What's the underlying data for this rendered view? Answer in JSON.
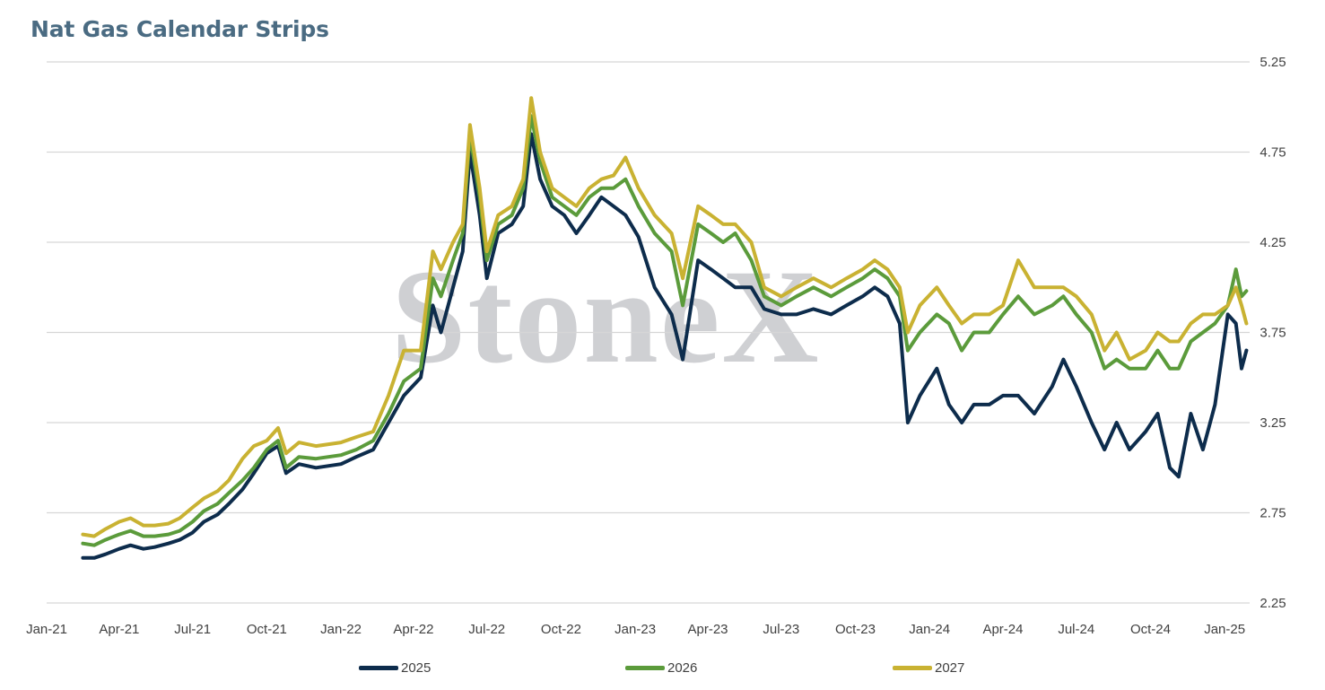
{
  "chart_data": {
    "type": "line",
    "title": "Nat Gas Calendar Strips",
    "xlabel": "",
    "ylabel": "",
    "x_range": [
      "2021-01-01",
      "2025-02-01"
    ],
    "ylim": [
      2.25,
      5.25
    ],
    "y_ticks": [
      "2.25",
      "2.75",
      "3.25",
      "3.75",
      "4.25",
      "4.75",
      "5.25"
    ],
    "y_axis_position": "right",
    "x_tick_labels": [
      "Jan-21",
      "Apr-21",
      "Jul-21",
      "Oct-21",
      "Jan-22",
      "Apr-22",
      "Jul-22",
      "Oct-22",
      "Jan-23",
      "Apr-23",
      "Jul-23",
      "Oct-23",
      "Jan-24",
      "Apr-24",
      "Jul-24",
      "Oct-24",
      "Jan-25"
    ],
    "grid": "horizontal",
    "legend_position": "bottom",
    "watermark": "StoneX",
    "series": [
      {
        "name": "2025",
        "color": "#0d2c4c",
        "points": [
          [
            "2021-02-15",
            2.5
          ],
          [
            "2021-03-01",
            2.5
          ],
          [
            "2021-03-15",
            2.52
          ],
          [
            "2021-04-01",
            2.55
          ],
          [
            "2021-04-15",
            2.57
          ],
          [
            "2021-05-01",
            2.55
          ],
          [
            "2021-05-15",
            2.56
          ],
          [
            "2021-06-01",
            2.58
          ],
          [
            "2021-06-15",
            2.6
          ],
          [
            "2021-07-01",
            2.64
          ],
          [
            "2021-07-15",
            2.7
          ],
          [
            "2021-08-01",
            2.74
          ],
          [
            "2021-08-15",
            2.8
          ],
          [
            "2021-09-01",
            2.88
          ],
          [
            "2021-09-15",
            2.97
          ],
          [
            "2021-10-01",
            3.08
          ],
          [
            "2021-10-15",
            3.12
          ],
          [
            "2021-10-25",
            2.97
          ],
          [
            "2021-11-10",
            3.02
          ],
          [
            "2021-12-01",
            3.0
          ],
          [
            "2022-01-01",
            3.02
          ],
          [
            "2022-01-20",
            3.06
          ],
          [
            "2022-02-10",
            3.1
          ],
          [
            "2022-03-01",
            3.25
          ],
          [
            "2022-03-20",
            3.4
          ],
          [
            "2022-04-10",
            3.5
          ],
          [
            "2022-04-25",
            3.9
          ],
          [
            "2022-05-05",
            3.75
          ],
          [
            "2022-05-20",
            4.0
          ],
          [
            "2022-06-01",
            4.2
          ],
          [
            "2022-06-10",
            4.75
          ],
          [
            "2022-06-22",
            4.4
          ],
          [
            "2022-07-01",
            4.05
          ],
          [
            "2022-07-15",
            4.3
          ],
          [
            "2022-08-01",
            4.35
          ],
          [
            "2022-08-15",
            4.45
          ],
          [
            "2022-08-25",
            4.85
          ],
          [
            "2022-09-05",
            4.6
          ],
          [
            "2022-09-20",
            4.45
          ],
          [
            "2022-10-05",
            4.4
          ],
          [
            "2022-10-20",
            4.3
          ],
          [
            "2022-11-05",
            4.4
          ],
          [
            "2022-11-20",
            4.5
          ],
          [
            "2022-12-05",
            4.45
          ],
          [
            "2022-12-20",
            4.4
          ],
          [
            "2023-01-05",
            4.28
          ],
          [
            "2023-01-25",
            4.0
          ],
          [
            "2023-02-15",
            3.85
          ],
          [
            "2023-03-01",
            3.6
          ],
          [
            "2023-03-20",
            4.15
          ],
          [
            "2023-04-05",
            4.1
          ],
          [
            "2023-04-20",
            4.05
          ],
          [
            "2023-05-05",
            4.0
          ],
          [
            "2023-05-25",
            4.0
          ],
          [
            "2023-06-10",
            3.88
          ],
          [
            "2023-07-01",
            3.85
          ],
          [
            "2023-07-20",
            3.85
          ],
          [
            "2023-08-10",
            3.88
          ],
          [
            "2023-09-01",
            3.85
          ],
          [
            "2023-09-20",
            3.9
          ],
          [
            "2023-10-10",
            3.95
          ],
          [
            "2023-10-25",
            4.0
          ],
          [
            "2023-11-10",
            3.95
          ],
          [
            "2023-11-25",
            3.8
          ],
          [
            "2023-12-05",
            3.25
          ],
          [
            "2023-12-20",
            3.4
          ],
          [
            "2024-01-10",
            3.55
          ],
          [
            "2024-01-25",
            3.35
          ],
          [
            "2024-02-10",
            3.25
          ],
          [
            "2024-02-25",
            3.35
          ],
          [
            "2024-03-15",
            3.35
          ],
          [
            "2024-04-01",
            3.4
          ],
          [
            "2024-04-20",
            3.4
          ],
          [
            "2024-05-10",
            3.3
          ],
          [
            "2024-06-01",
            3.45
          ],
          [
            "2024-06-15",
            3.6
          ],
          [
            "2024-07-01",
            3.45
          ],
          [
            "2024-07-20",
            3.25
          ],
          [
            "2024-08-05",
            3.1
          ],
          [
            "2024-08-20",
            3.25
          ],
          [
            "2024-09-05",
            3.1
          ],
          [
            "2024-09-25",
            3.2
          ],
          [
            "2024-10-10",
            3.3
          ],
          [
            "2024-10-25",
            3.0
          ],
          [
            "2024-11-05",
            2.95
          ],
          [
            "2024-11-20",
            3.3
          ],
          [
            "2024-12-05",
            3.1
          ],
          [
            "2024-12-20",
            3.35
          ],
          [
            "2025-01-05",
            3.85
          ],
          [
            "2025-01-15",
            3.8
          ],
          [
            "2025-01-22",
            3.55
          ],
          [
            "2025-01-28",
            3.65
          ]
        ]
      },
      {
        "name": "2026",
        "color": "#5b9b3b",
        "points": [
          [
            "2021-02-15",
            2.58
          ],
          [
            "2021-03-01",
            2.57
          ],
          [
            "2021-03-15",
            2.6
          ],
          [
            "2021-04-01",
            2.63
          ],
          [
            "2021-04-15",
            2.65
          ],
          [
            "2021-05-01",
            2.62
          ],
          [
            "2021-05-15",
            2.62
          ],
          [
            "2021-06-01",
            2.63
          ],
          [
            "2021-06-15",
            2.65
          ],
          [
            "2021-07-01",
            2.7
          ],
          [
            "2021-07-15",
            2.76
          ],
          [
            "2021-08-01",
            2.8
          ],
          [
            "2021-08-15",
            2.86
          ],
          [
            "2021-09-01",
            2.93
          ],
          [
            "2021-09-15",
            3.0
          ],
          [
            "2021-10-01",
            3.1
          ],
          [
            "2021-10-15",
            3.15
          ],
          [
            "2021-10-25",
            3.0
          ],
          [
            "2021-11-10",
            3.06
          ],
          [
            "2021-12-01",
            3.05
          ],
          [
            "2022-01-01",
            3.07
          ],
          [
            "2022-01-20",
            3.1
          ],
          [
            "2022-02-10",
            3.15
          ],
          [
            "2022-03-01",
            3.3
          ],
          [
            "2022-03-20",
            3.48
          ],
          [
            "2022-04-10",
            3.55
          ],
          [
            "2022-04-25",
            4.05
          ],
          [
            "2022-05-05",
            3.95
          ],
          [
            "2022-05-20",
            4.15
          ],
          [
            "2022-06-01",
            4.3
          ],
          [
            "2022-06-10",
            4.85
          ],
          [
            "2022-06-22",
            4.5
          ],
          [
            "2022-07-01",
            4.15
          ],
          [
            "2022-07-15",
            4.35
          ],
          [
            "2022-08-01",
            4.4
          ],
          [
            "2022-08-15",
            4.55
          ],
          [
            "2022-08-25",
            4.95
          ],
          [
            "2022-09-05",
            4.7
          ],
          [
            "2022-09-20",
            4.5
          ],
          [
            "2022-10-05",
            4.45
          ],
          [
            "2022-10-20",
            4.4
          ],
          [
            "2022-11-05",
            4.5
          ],
          [
            "2022-11-20",
            4.55
          ],
          [
            "2022-12-05",
            4.55
          ],
          [
            "2022-12-20",
            4.6
          ],
          [
            "2023-01-05",
            4.45
          ],
          [
            "2023-01-25",
            4.3
          ],
          [
            "2023-02-15",
            4.2
          ],
          [
            "2023-03-01",
            3.9
          ],
          [
            "2023-03-20",
            4.35
          ],
          [
            "2023-04-05",
            4.3
          ],
          [
            "2023-04-20",
            4.25
          ],
          [
            "2023-05-05",
            4.3
          ],
          [
            "2023-05-25",
            4.15
          ],
          [
            "2023-06-10",
            3.95
          ],
          [
            "2023-07-01",
            3.9
          ],
          [
            "2023-07-20",
            3.95
          ],
          [
            "2023-08-10",
            4.0
          ],
          [
            "2023-09-01",
            3.95
          ],
          [
            "2023-09-20",
            4.0
          ],
          [
            "2023-10-10",
            4.05
          ],
          [
            "2023-10-25",
            4.1
          ],
          [
            "2023-11-10",
            4.05
          ],
          [
            "2023-11-25",
            3.95
          ],
          [
            "2023-12-05",
            3.65
          ],
          [
            "2023-12-20",
            3.75
          ],
          [
            "2024-01-10",
            3.85
          ],
          [
            "2024-01-25",
            3.8
          ],
          [
            "2024-02-10",
            3.65
          ],
          [
            "2024-02-25",
            3.75
          ],
          [
            "2024-03-15",
            3.75
          ],
          [
            "2024-04-01",
            3.85
          ],
          [
            "2024-04-20",
            3.95
          ],
          [
            "2024-05-10",
            3.85
          ],
          [
            "2024-06-01",
            3.9
          ],
          [
            "2024-06-15",
            3.95
          ],
          [
            "2024-07-01",
            3.85
          ],
          [
            "2024-07-20",
            3.75
          ],
          [
            "2024-08-05",
            3.55
          ],
          [
            "2024-08-20",
            3.6
          ],
          [
            "2024-09-05",
            3.55
          ],
          [
            "2024-09-25",
            3.55
          ],
          [
            "2024-10-10",
            3.65
          ],
          [
            "2024-10-25",
            3.55
          ],
          [
            "2024-11-05",
            3.55
          ],
          [
            "2024-11-20",
            3.7
          ],
          [
            "2024-12-05",
            3.75
          ],
          [
            "2024-12-20",
            3.8
          ],
          [
            "2025-01-05",
            3.9
          ],
          [
            "2025-01-15",
            4.1
          ],
          [
            "2025-01-22",
            3.95
          ],
          [
            "2025-01-28",
            3.98
          ]
        ]
      },
      {
        "name": "2027",
        "color": "#c9b232",
        "points": [
          [
            "2021-02-15",
            2.63
          ],
          [
            "2021-03-01",
            2.62
          ],
          [
            "2021-03-15",
            2.66
          ],
          [
            "2021-04-01",
            2.7
          ],
          [
            "2021-04-15",
            2.72
          ],
          [
            "2021-05-01",
            2.68
          ],
          [
            "2021-05-15",
            2.68
          ],
          [
            "2021-06-01",
            2.69
          ],
          [
            "2021-06-15",
            2.72
          ],
          [
            "2021-07-01",
            2.78
          ],
          [
            "2021-07-15",
            2.83
          ],
          [
            "2021-08-01",
            2.87
          ],
          [
            "2021-08-15",
            2.93
          ],
          [
            "2021-09-01",
            3.05
          ],
          [
            "2021-09-15",
            3.12
          ],
          [
            "2021-10-01",
            3.15
          ],
          [
            "2021-10-15",
            3.22
          ],
          [
            "2021-10-25",
            3.08
          ],
          [
            "2021-11-10",
            3.14
          ],
          [
            "2021-12-01",
            3.12
          ],
          [
            "2022-01-01",
            3.14
          ],
          [
            "2022-01-20",
            3.17
          ],
          [
            "2022-02-10",
            3.2
          ],
          [
            "2022-03-01",
            3.4
          ],
          [
            "2022-03-20",
            3.65
          ],
          [
            "2022-04-10",
            3.65
          ],
          [
            "2022-04-25",
            4.2
          ],
          [
            "2022-05-05",
            4.1
          ],
          [
            "2022-05-20",
            4.25
          ],
          [
            "2022-06-01",
            4.35
          ],
          [
            "2022-06-10",
            4.9
          ],
          [
            "2022-06-22",
            4.55
          ],
          [
            "2022-07-01",
            4.2
          ],
          [
            "2022-07-15",
            4.4
          ],
          [
            "2022-08-01",
            4.45
          ],
          [
            "2022-08-15",
            4.6
          ],
          [
            "2022-08-25",
            5.05
          ],
          [
            "2022-09-05",
            4.75
          ],
          [
            "2022-09-20",
            4.55
          ],
          [
            "2022-10-05",
            4.5
          ],
          [
            "2022-10-20",
            4.45
          ],
          [
            "2022-11-05",
            4.55
          ],
          [
            "2022-11-20",
            4.6
          ],
          [
            "2022-12-05",
            4.62
          ],
          [
            "2022-12-20",
            4.72
          ],
          [
            "2023-01-05",
            4.55
          ],
          [
            "2023-01-25",
            4.4
          ],
          [
            "2023-02-15",
            4.3
          ],
          [
            "2023-03-01",
            4.05
          ],
          [
            "2023-03-20",
            4.45
          ],
          [
            "2023-04-05",
            4.4
          ],
          [
            "2023-04-20",
            4.35
          ],
          [
            "2023-05-05",
            4.35
          ],
          [
            "2023-05-25",
            4.25
          ],
          [
            "2023-06-10",
            4.0
          ],
          [
            "2023-07-01",
            3.95
          ],
          [
            "2023-07-20",
            4.0
          ],
          [
            "2023-08-10",
            4.05
          ],
          [
            "2023-09-01",
            4.0
          ],
          [
            "2023-09-20",
            4.05
          ],
          [
            "2023-10-10",
            4.1
          ],
          [
            "2023-10-25",
            4.15
          ],
          [
            "2023-11-10",
            4.1
          ],
          [
            "2023-11-25",
            4.0
          ],
          [
            "2023-12-05",
            3.75
          ],
          [
            "2023-12-20",
            3.9
          ],
          [
            "2024-01-10",
            4.0
          ],
          [
            "2024-01-25",
            3.9
          ],
          [
            "2024-02-10",
            3.8
          ],
          [
            "2024-02-25",
            3.85
          ],
          [
            "2024-03-15",
            3.85
          ],
          [
            "2024-04-01",
            3.9
          ],
          [
            "2024-04-20",
            4.15
          ],
          [
            "2024-05-10",
            4.0
          ],
          [
            "2024-06-01",
            4.0
          ],
          [
            "2024-06-15",
            4.0
          ],
          [
            "2024-07-01",
            3.95
          ],
          [
            "2024-07-20",
            3.85
          ],
          [
            "2024-08-05",
            3.65
          ],
          [
            "2024-08-20",
            3.75
          ],
          [
            "2024-09-05",
            3.6
          ],
          [
            "2024-09-25",
            3.65
          ],
          [
            "2024-10-10",
            3.75
          ],
          [
            "2024-10-25",
            3.7
          ],
          [
            "2024-11-05",
            3.7
          ],
          [
            "2024-11-20",
            3.8
          ],
          [
            "2024-12-05",
            3.85
          ],
          [
            "2024-12-20",
            3.85
          ],
          [
            "2025-01-05",
            3.9
          ],
          [
            "2025-01-15",
            4.0
          ],
          [
            "2025-01-22",
            3.9
          ],
          [
            "2025-01-28",
            3.8
          ]
        ]
      }
    ]
  }
}
